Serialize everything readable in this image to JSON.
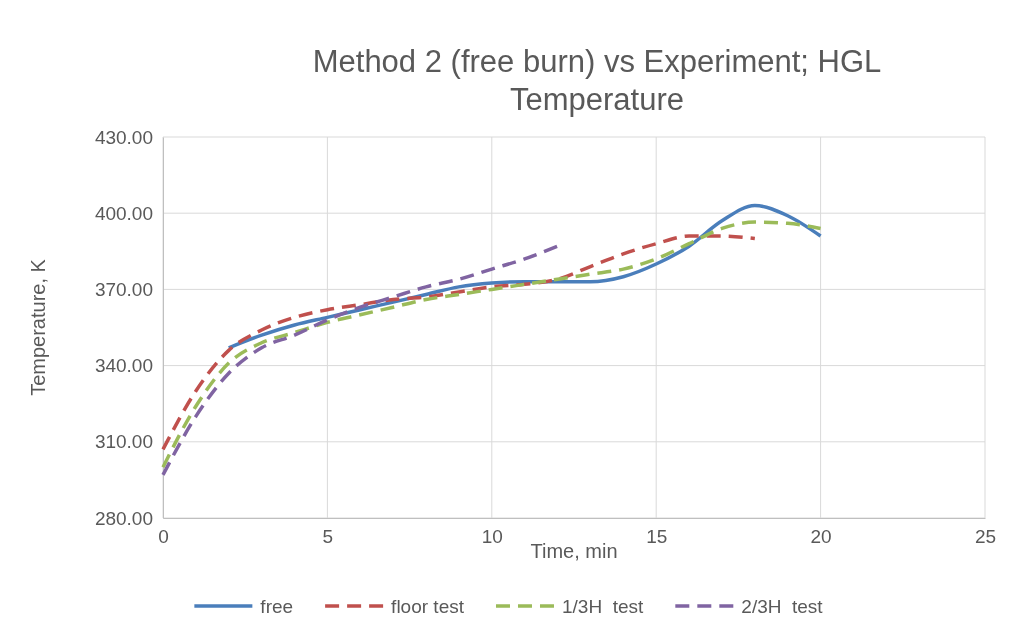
{
  "chart_data": {
    "type": "line",
    "title": "Method 2 (free burn) vs Experiment; HGL Temperature",
    "xlabel": "Time, min",
    "ylabel": "Temperature, K",
    "xlim": [
      0,
      25
    ],
    "xticks": [
      0,
      5,
      10,
      15,
      20,
      25
    ],
    "ylim": [
      280,
      430
    ],
    "yticks": [
      {
        "value": 280,
        "label": "280.00"
      },
      {
        "value": 310,
        "label": "310.00"
      },
      {
        "value": 340,
        "label": "340.00"
      },
      {
        "value": 370,
        "label": "370.00"
      },
      {
        "value": 400,
        "label": "400.00"
      },
      {
        "value": 430,
        "label": "430.00"
      }
    ],
    "grid": true,
    "legend": "bottom",
    "marker": "none",
    "series": [
      {
        "name": "free",
        "color": "#4a7ebb",
        "line_style": "solid",
        "x": [
          2,
          3,
          4,
          5,
          6,
          7,
          8,
          9,
          10,
          11,
          12,
          13,
          14,
          15,
          16,
          17,
          18,
          19,
          20
        ],
        "values": [
          347,
          352,
          356,
          359,
          362,
          365,
          368,
          371,
          372.5,
          373,
          373,
          373,
          375,
          380,
          387,
          397,
          403,
          399,
          391
        ]
      },
      {
        "name": "floor test",
        "color": "#c0504d",
        "line_style": "dashed",
        "x": [
          0,
          1,
          2,
          3,
          4,
          5,
          6,
          7,
          8,
          9,
          10,
          11,
          12,
          13,
          14,
          15,
          16,
          17,
          18
        ],
        "values": [
          307,
          330,
          346,
          354,
          359,
          362,
          364,
          366,
          367,
          369,
          371,
          372,
          374,
          379,
          384,
          388,
          391,
          391,
          390
        ]
      },
      {
        "name": "1/3H  test",
        "color": "#9bbb59",
        "line_style": "dashed",
        "x": [
          0,
          1,
          2,
          3,
          4,
          5,
          6,
          7,
          8,
          9,
          10,
          11,
          12,
          13,
          14,
          15,
          16,
          17,
          18,
          19,
          20
        ],
        "values": [
          300,
          324,
          341,
          349,
          353,
          357,
          360,
          363,
          366,
          368,
          370,
          372,
          374,
          376,
          378,
          382,
          388,
          394,
          396.5,
          396,
          394
        ]
      },
      {
        "name": "2/3H  test",
        "color": "#8064a2",
        "line_style": "dashed",
        "x": [
          0,
          1,
          2,
          3,
          4,
          5,
          6,
          7,
          8,
          9,
          10,
          11,
          12
        ],
        "values": [
          297,
          320,
          337,
          347,
          352,
          358,
          363,
          367,
          371,
          374,
          378,
          382,
          387
        ]
      }
    ]
  }
}
